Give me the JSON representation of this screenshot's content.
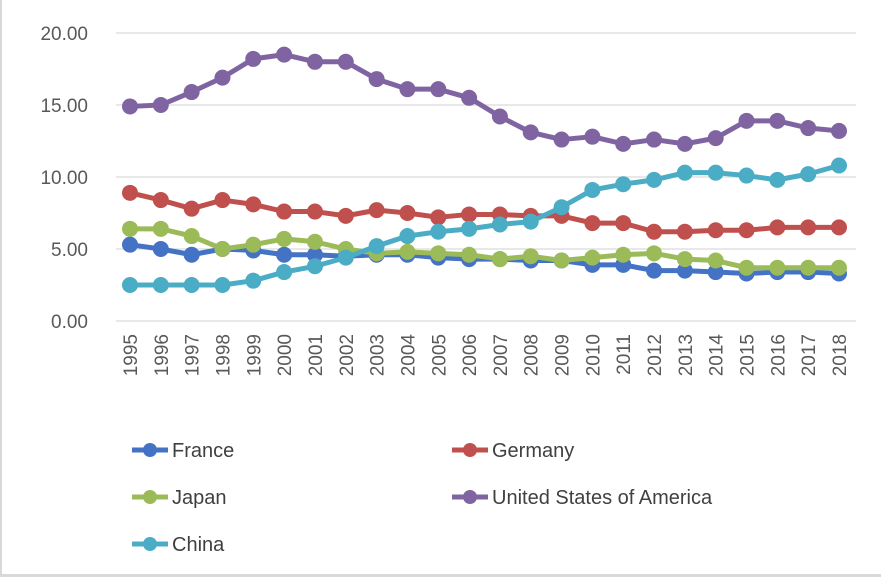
{
  "chart_data": {
    "type": "line",
    "title": "",
    "xlabel": "",
    "ylabel": "",
    "ylim": [
      0,
      20
    ],
    "yticks": [
      "0.00",
      "5.00",
      "10.00",
      "15.00",
      "20.00"
    ],
    "ytick_values": [
      0,
      5,
      10,
      15,
      20
    ],
    "grid": true,
    "legend_position": "bottom",
    "categories": [
      "1995",
      "1996",
      "1997",
      "1998",
      "1999",
      "2000",
      "2001",
      "2002",
      "2003",
      "2004",
      "2005",
      "2006",
      "2007",
      "2008",
      "2009",
      "2010",
      "2011",
      "2012",
      "2013",
      "2014",
      "2015",
      "2016",
      "2017",
      "2018"
    ],
    "series": [
      {
        "name": "France",
        "color": "#4472c4",
        "values": [
          5.3,
          5.0,
          4.6,
          5.0,
          4.9,
          4.6,
          4.6,
          4.5,
          4.6,
          4.6,
          4.4,
          4.3,
          4.3,
          4.2,
          4.2,
          3.9,
          3.9,
          3.5,
          3.5,
          3.4,
          3.3,
          3.4,
          3.4,
          3.3
        ]
      },
      {
        "name": "Germany",
        "color": "#c0504d",
        "values": [
          8.9,
          8.4,
          7.8,
          8.4,
          8.1,
          7.6,
          7.6,
          7.3,
          7.7,
          7.5,
          7.2,
          7.4,
          7.4,
          7.3,
          7.3,
          6.8,
          6.8,
          6.2,
          6.2,
          6.3,
          6.3,
          6.5,
          6.5,
          6.5
        ]
      },
      {
        "name": "Japan",
        "color": "#9bbb59",
        "values": [
          6.4,
          6.4,
          5.9,
          5.0,
          5.3,
          5.7,
          5.5,
          5.0,
          4.7,
          4.8,
          4.7,
          4.6,
          4.3,
          4.5,
          4.2,
          4.4,
          4.6,
          4.7,
          4.3,
          4.2,
          3.7,
          3.7,
          3.7,
          3.7
        ]
      },
      {
        "name": "United States of America",
        "color": "#8064a2",
        "values": [
          14.9,
          15.0,
          15.9,
          16.9,
          18.2,
          18.5,
          18.0,
          18.0,
          16.8,
          16.1,
          16.1,
          15.5,
          14.2,
          13.1,
          12.6,
          12.8,
          12.3,
          12.6,
          12.3,
          12.7,
          13.9,
          13.9,
          13.4,
          13.2
        ]
      },
      {
        "name": "China",
        "color": "#4bacc6",
        "values": [
          2.5,
          2.5,
          2.5,
          2.5,
          2.8,
          3.4,
          3.8,
          4.4,
          5.2,
          5.9,
          6.2,
          6.4,
          6.7,
          6.9,
          7.9,
          9.1,
          9.5,
          9.8,
          10.3,
          10.3,
          10.1,
          9.8,
          10.2,
          10.8
        ]
      }
    ]
  }
}
